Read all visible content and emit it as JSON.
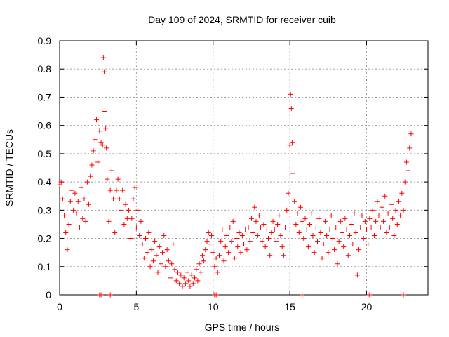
{
  "chart_data": {
    "type": "scatter",
    "title": "Day 109 of 2024, SRMTID for receiver cuib",
    "xlabel": "GPS time / hours",
    "ylabel": "SRMTID / TECUs",
    "xlim": [
      0,
      24
    ],
    "ylim": [
      0,
      0.9
    ],
    "x_ticks": [
      0,
      5,
      10,
      15,
      20
    ],
    "x_tick_labels": [
      "0",
      "5",
      "10",
      "15",
      "20"
    ],
    "y_ticks": [
      0,
      0.1,
      0.2,
      0.3,
      0.4,
      0.5,
      0.6,
      0.7,
      0.8,
      0.9
    ],
    "y_tick_labels": [
      "0",
      "0.1",
      "0.2",
      "0.3",
      "0.4",
      "0.5",
      "0.6",
      "0.7",
      "0.8",
      "0.9"
    ],
    "grid": true,
    "marker": "+",
    "marker_color": "#ff0000",
    "series": [
      {
        "name": "SRMTID",
        "points": [
          [
            0.0,
            0.39
          ],
          [
            0.1,
            0.4
          ],
          [
            0.2,
            0.34
          ],
          [
            0.3,
            0.28
          ],
          [
            0.4,
            0.22
          ],
          [
            0.5,
            0.16
          ],
          [
            0.6,
            0.25
          ],
          [
            0.7,
            0.33
          ],
          [
            0.8,
            0.37
          ],
          [
            0.9,
            0.3
          ],
          [
            1.0,
            0.36
          ],
          [
            1.1,
            0.29
          ],
          [
            1.2,
            0.33
          ],
          [
            1.3,
            0.24
          ],
          [
            1.4,
            0.38
          ],
          [
            1.5,
            0.27
          ],
          [
            1.6,
            0.34
          ],
          [
            1.7,
            0.26
          ],
          [
            1.8,
            0.4
          ],
          [
            1.9,
            0.32
          ],
          [
            2.0,
            0.42
          ],
          [
            2.1,
            0.46
          ],
          [
            2.2,
            0.51
          ],
          [
            2.3,
            0.55
          ],
          [
            2.4,
            0.62
          ],
          [
            2.5,
            0.47
          ],
          [
            2.6,
            0.58
          ],
          [
            2.7,
            0.54
          ],
          [
            2.8,
            0.53
          ],
          [
            2.85,
            0.84
          ],
          [
            2.9,
            0.79
          ],
          [
            2.95,
            0.65
          ],
          [
            3.0,
            0.59
          ],
          [
            3.05,
            0.52
          ],
          [
            3.1,
            0.41
          ],
          [
            3.2,
            0.26
          ],
          [
            3.3,
            0.37
          ],
          [
            3.4,
            0.44
          ],
          [
            3.5,
            0.34
          ],
          [
            3.6,
            0.22
          ],
          [
            3.7,
            0.37
          ],
          [
            3.8,
            0.41
          ],
          [
            3.9,
            0.34
          ],
          [
            4.0,
            0.3
          ],
          [
            4.1,
            0.37
          ],
          [
            4.2,
            0.25
          ],
          [
            4.3,
            0.32
          ],
          [
            4.4,
            0.27
          ],
          [
            4.5,
            0.3
          ],
          [
            4.6,
            0.2
          ],
          [
            4.7,
            0.27
          ],
          [
            4.8,
            0.34
          ],
          [
            4.9,
            0.38
          ],
          [
            5.0,
            0.24
          ],
          [
            5.1,
            0.3
          ],
          [
            5.2,
            0.21
          ],
          [
            5.3,
            0.26
          ],
          [
            5.4,
            0.18
          ],
          [
            5.5,
            0.13
          ],
          [
            5.6,
            0.2
          ],
          [
            5.7,
            0.15
          ],
          [
            5.8,
            0.22
          ],
          [
            5.9,
            0.1
          ],
          [
            6.0,
            0.16
          ],
          [
            6.1,
            0.12
          ],
          [
            6.2,
            0.19
          ],
          [
            6.3,
            0.14
          ],
          [
            6.4,
            0.08
          ],
          [
            6.5,
            0.17
          ],
          [
            6.6,
            0.11
          ],
          [
            6.7,
            0.15
          ],
          [
            6.8,
            0.21
          ],
          [
            6.9,
            0.1
          ],
          [
            7.0,
            0.16
          ],
          [
            7.1,
            0.12
          ],
          [
            7.2,
            0.06
          ],
          [
            7.3,
            0.11
          ],
          [
            7.4,
            0.18
          ],
          [
            7.5,
            0.09
          ],
          [
            7.6,
            0.05
          ],
          [
            7.7,
            0.08
          ],
          [
            7.8,
            0.04
          ],
          [
            7.9,
            0.07
          ],
          [
            8.0,
            0.03
          ],
          [
            8.1,
            0.06
          ],
          [
            8.2,
            0.04
          ],
          [
            8.3,
            0.08
          ],
          [
            8.4,
            0.05
          ],
          [
            8.5,
            0.03
          ],
          [
            8.6,
            0.07
          ],
          [
            8.7,
            0.04
          ],
          [
            8.8,
            0.06
          ],
          [
            8.9,
            0.09
          ],
          [
            9.0,
            0.05
          ],
          [
            9.1,
            0.11
          ],
          [
            9.2,
            0.08
          ],
          [
            9.3,
            0.14
          ],
          [
            9.4,
            0.12
          ],
          [
            9.5,
            0.16
          ],
          [
            9.6,
            0.19
          ],
          [
            9.7,
            0.22
          ],
          [
            9.8,
            0.18
          ],
          [
            9.9,
            0.21
          ],
          [
            10.0,
            0.15
          ],
          [
            10.1,
            0.1
          ],
          [
            10.2,
            0.13
          ],
          [
            10.3,
            0.08
          ],
          [
            10.4,
            0.14
          ],
          [
            10.5,
            0.19
          ],
          [
            10.6,
            0.23
          ],
          [
            10.7,
            0.12
          ],
          [
            10.8,
            0.17
          ],
          [
            10.9,
            0.21
          ],
          [
            11.0,
            0.15
          ],
          [
            11.1,
            0.24
          ],
          [
            11.2,
            0.19
          ],
          [
            11.3,
            0.26
          ],
          [
            11.4,
            0.13
          ],
          [
            11.5,
            0.2
          ],
          [
            11.6,
            0.17
          ],
          [
            11.7,
            0.22
          ],
          [
            11.8,
            0.15
          ],
          [
            11.9,
            0.21
          ],
          [
            12.0,
            0.18
          ],
          [
            12.1,
            0.23
          ],
          [
            12.2,
            0.16
          ],
          [
            12.3,
            0.24
          ],
          [
            12.4,
            0.19
          ],
          [
            12.5,
            0.27
          ],
          [
            12.6,
            0.22
          ],
          [
            12.7,
            0.31
          ],
          [
            12.8,
            0.26
          ],
          [
            12.9,
            0.21
          ],
          [
            13.0,
            0.28
          ],
          [
            13.1,
            0.24
          ],
          [
            13.2,
            0.19
          ],
          [
            13.3,
            0.25
          ],
          [
            13.4,
            0.17
          ],
          [
            13.5,
            0.23
          ],
          [
            13.6,
            0.2
          ],
          [
            13.7,
            0.14
          ],
          [
            13.8,
            0.22
          ],
          [
            13.9,
            0.26
          ],
          [
            14.0,
            0.23
          ],
          [
            14.1,
            0.19
          ],
          [
            14.2,
            0.25
          ],
          [
            14.3,
            0.28
          ],
          [
            14.4,
            0.21
          ],
          [
            14.5,
            0.17
          ],
          [
            14.6,
            0.14
          ],
          [
            14.7,
            0.24
          ],
          [
            14.8,
            0.3
          ],
          [
            14.9,
            0.36
          ],
          [
            15.0,
            0.53
          ],
          [
            15.05,
            0.71
          ],
          [
            15.1,
            0.66
          ],
          [
            15.15,
            0.54
          ],
          [
            15.2,
            0.43
          ],
          [
            15.3,
            0.33
          ],
          [
            15.4,
            0.25
          ],
          [
            15.5,
            0.29
          ],
          [
            15.6,
            0.22
          ],
          [
            15.7,
            0.31
          ],
          [
            15.8,
            0.26
          ],
          [
            15.9,
            0.2
          ],
          [
            16.0,
            0.27
          ],
          [
            16.1,
            0.23
          ],
          [
            16.2,
            0.17
          ],
          [
            16.3,
            0.25
          ],
          [
            16.4,
            0.29
          ],
          [
            16.5,
            0.21
          ],
          [
            16.6,
            0.15
          ],
          [
            16.7,
            0.24
          ],
          [
            16.8,
            0.19
          ],
          [
            16.9,
            0.27
          ],
          [
            17.0,
            0.22
          ],
          [
            17.1,
            0.13
          ],
          [
            17.2,
            0.18
          ],
          [
            17.3,
            0.26
          ],
          [
            17.4,
            0.21
          ],
          [
            17.5,
            0.15
          ],
          [
            17.6,
            0.23
          ],
          [
            17.7,
            0.28
          ],
          [
            17.8,
            0.2
          ],
          [
            17.9,
            0.16
          ],
          [
            18.0,
            0.24
          ],
          [
            18.1,
            0.11
          ],
          [
            18.2,
            0.19
          ],
          [
            18.3,
            0.26
          ],
          [
            18.4,
            0.22
          ],
          [
            18.5,
            0.17
          ],
          [
            18.6,
            0.27
          ],
          [
            18.7,
            0.23
          ],
          [
            18.8,
            0.14
          ],
          [
            18.9,
            0.21
          ],
          [
            19.0,
            0.25
          ],
          [
            19.1,
            0.18
          ],
          [
            19.2,
            0.29
          ],
          [
            19.3,
            0.22
          ],
          [
            19.4,
            0.07
          ],
          [
            19.5,
            0.16
          ],
          [
            19.6,
            0.24
          ],
          [
            19.7,
            0.28
          ],
          [
            19.8,
            0.2
          ],
          [
            19.9,
            0.26
          ],
          [
            20.0,
            0.23
          ],
          [
            20.1,
            0.18
          ],
          [
            20.2,
            0.27
          ],
          [
            20.3,
            0.24
          ],
          [
            20.4,
            0.3
          ],
          [
            20.5,
            0.21
          ],
          [
            20.6,
            0.26
          ],
          [
            20.7,
            0.33
          ],
          [
            20.8,
            0.28
          ],
          [
            20.9,
            0.24
          ],
          [
            21.0,
            0.31
          ],
          [
            21.1,
            0.26
          ],
          [
            21.2,
            0.35
          ],
          [
            21.3,
            0.22
          ],
          [
            21.4,
            0.29
          ],
          [
            21.5,
            0.24
          ],
          [
            21.6,
            0.32
          ],
          [
            21.7,
            0.27
          ],
          [
            21.8,
            0.21
          ],
          [
            21.9,
            0.3
          ],
          [
            22.0,
            0.25
          ],
          [
            22.1,
            0.33
          ],
          [
            22.2,
            0.28
          ],
          [
            22.3,
            0.36
          ],
          [
            22.4,
            0.3
          ],
          [
            22.5,
            0.4
          ],
          [
            22.6,
            0.47
          ],
          [
            22.7,
            0.44
          ],
          [
            22.8,
            0.52
          ],
          [
            22.9,
            0.57
          ]
        ]
      }
    ],
    "zero_points": [
      [
        2.6,
        0
      ],
      [
        2.7,
        0
      ],
      [
        3.3,
        0
      ],
      [
        10.1,
        0
      ],
      [
        10.2,
        0
      ],
      [
        15.8,
        0
      ],
      [
        20.1,
        0
      ],
      [
        20.2,
        0
      ],
      [
        22.4,
        0
      ]
    ]
  }
}
